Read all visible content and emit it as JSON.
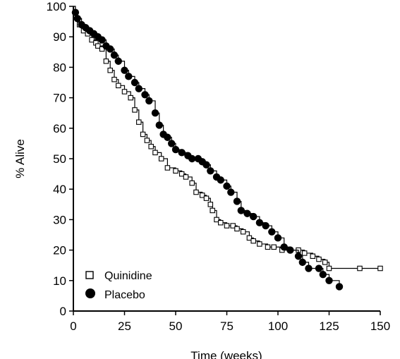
{
  "chart_data": {
    "type": "line",
    "subtype": "kaplan-meier-step",
    "title": "",
    "xlabel": "Time (weeks)",
    "ylabel": "% Alive",
    "xlim": [
      0,
      150
    ],
    "ylim": [
      0,
      100
    ],
    "xticks": [
      "0",
      "25",
      "50",
      "75",
      "100",
      "125",
      "150"
    ],
    "yticks": [
      "0",
      "10",
      "20",
      "30",
      "40",
      "50",
      "60",
      "70",
      "80",
      "90",
      "100"
    ],
    "legend_position": "bottom-left",
    "series": [
      {
        "name": "Quinidine",
        "marker": "open-square",
        "points": [
          [
            0,
            100
          ],
          [
            1,
            98
          ],
          [
            2,
            96
          ],
          [
            3,
            94
          ],
          [
            5,
            92
          ],
          [
            7,
            91
          ],
          [
            9,
            89
          ],
          [
            11,
            88
          ],
          [
            12,
            87
          ],
          [
            14,
            86
          ],
          [
            16,
            82
          ],
          [
            18,
            79
          ],
          [
            20,
            76
          ],
          [
            22,
            74
          ],
          [
            25,
            72
          ],
          [
            28,
            70
          ],
          [
            30,
            66
          ],
          [
            32,
            62
          ],
          [
            34,
            58
          ],
          [
            36,
            56
          ],
          [
            38,
            54
          ],
          [
            40,
            52
          ],
          [
            43,
            50
          ],
          [
            46,
            47
          ],
          [
            50,
            46
          ],
          [
            53,
            45
          ],
          [
            55,
            44
          ],
          [
            58,
            42
          ],
          [
            60,
            39
          ],
          [
            63,
            38
          ],
          [
            65,
            37
          ],
          [
            67,
            35
          ],
          [
            68,
            33
          ],
          [
            70,
            30
          ],
          [
            72,
            29
          ],
          [
            75,
            28
          ],
          [
            78,
            28
          ],
          [
            80,
            27
          ],
          [
            83,
            26
          ],
          [
            86,
            24
          ],
          [
            88,
            23
          ],
          [
            91,
            22
          ],
          [
            95,
            21
          ],
          [
            98,
            21
          ],
          [
            102,
            20
          ],
          [
            106,
            20
          ],
          [
            110,
            20
          ],
          [
            113,
            19
          ],
          [
            117,
            18
          ],
          [
            120,
            17
          ],
          [
            123,
            16
          ],
          [
            125,
            14
          ],
          [
            140,
            14
          ],
          [
            150,
            14
          ]
        ]
      },
      {
        "name": "Placebo",
        "marker": "filled-circle",
        "points": [
          [
            0,
            100
          ],
          [
            1,
            98
          ],
          [
            2,
            96
          ],
          [
            4,
            94
          ],
          [
            6,
            93
          ],
          [
            8,
            92
          ],
          [
            10,
            91
          ],
          [
            12,
            90
          ],
          [
            14,
            89
          ],
          [
            16,
            87
          ],
          [
            18,
            86
          ],
          [
            20,
            84
          ],
          [
            22,
            82
          ],
          [
            25,
            79
          ],
          [
            27,
            77
          ],
          [
            30,
            75
          ],
          [
            32,
            73
          ],
          [
            35,
            71
          ],
          [
            37,
            69
          ],
          [
            40,
            65
          ],
          [
            42,
            61
          ],
          [
            44,
            58
          ],
          [
            46,
            57
          ],
          [
            48,
            55
          ],
          [
            50,
            53
          ],
          [
            53,
            52
          ],
          [
            56,
            51
          ],
          [
            58,
            50
          ],
          [
            61,
            50
          ],
          [
            63,
            49
          ],
          [
            65,
            48
          ],
          [
            67,
            46
          ],
          [
            70,
            44
          ],
          [
            72,
            43
          ],
          [
            75,
            41
          ],
          [
            77,
            39
          ],
          [
            80,
            36
          ],
          [
            82,
            33
          ],
          [
            85,
            32
          ],
          [
            88,
            31
          ],
          [
            91,
            29
          ],
          [
            94,
            28
          ],
          [
            97,
            26
          ],
          [
            100,
            24
          ],
          [
            103,
            21
          ],
          [
            106,
            20
          ],
          [
            110,
            18
          ],
          [
            112,
            16
          ],
          [
            115,
            14
          ],
          [
            120,
            14
          ],
          [
            122,
            12
          ],
          [
            125,
            10
          ],
          [
            130,
            8
          ]
        ]
      }
    ]
  }
}
